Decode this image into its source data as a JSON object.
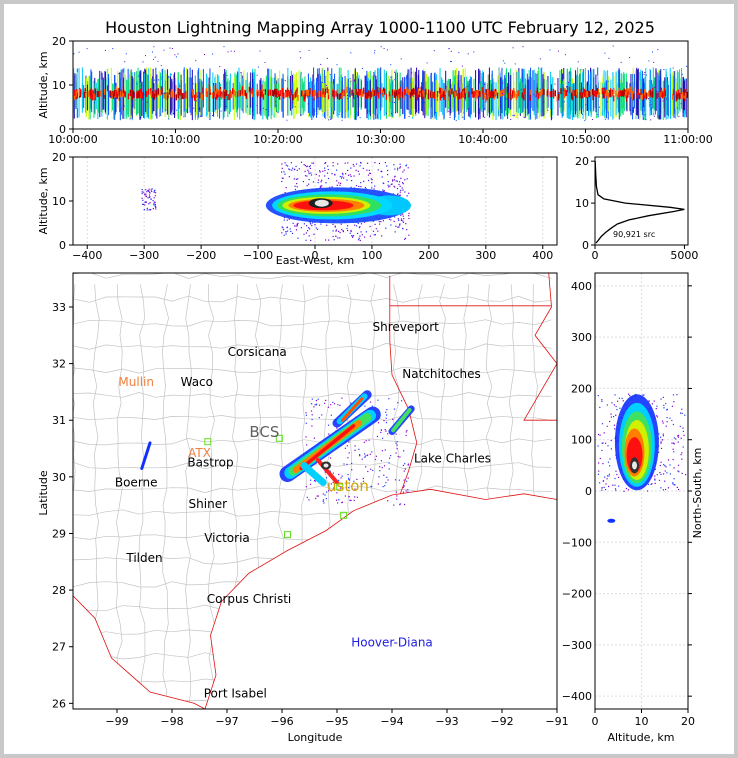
{
  "chart_data": {
    "type": "scatter",
    "title": "Houston Lightning Mapping Array 1000-1100 UTC February 12, 2025",
    "panels": {
      "time_height": {
        "ylabel": "Altitude, km",
        "ylim": [
          0,
          20
        ],
        "y_ticks": [
          "0",
          "10",
          "20"
        ],
        "x_ticks": [
          "10:00:00",
          "10:10:00",
          "10:20:00",
          "10:30:00",
          "10:40:00",
          "10:50:00",
          "11:00:00"
        ],
        "density_band_km": [
          2,
          14
        ],
        "peak_altitude_km": 8
      },
      "east_west_height": {
        "xlabel": "East-West, km",
        "ylabel": "Altitude, km",
        "xlim": [
          -425,
          425
        ],
        "ylim": [
          0,
          20
        ],
        "x_ticks": [
          "−400",
          "−300",
          "−200",
          "−100",
          "0",
          "100",
          "200",
          "300",
          "400"
        ],
        "y_ticks": [
          "0",
          "10",
          "20"
        ]
      },
      "altitude_histogram": {
        "x_ticks": [
          "0",
          "5000"
        ],
        "y_ticks": [
          "0",
          "10",
          "20"
        ],
        "xlim": [
          0,
          5200
        ],
        "ylim": [
          0,
          21
        ],
        "annotation": "90,921 src",
        "profile": [
          {
            "alt": 0.5,
            "count": 60
          },
          {
            "alt": 1,
            "count": 160
          },
          {
            "alt": 2,
            "count": 340
          },
          {
            "alt": 3,
            "count": 600
          },
          {
            "alt": 4,
            "count": 900
          },
          {
            "alt": 5,
            "count": 1250
          },
          {
            "alt": 6,
            "count": 1900
          },
          {
            "alt": 7,
            "count": 3000
          },
          {
            "alt": 8,
            "count": 4400
          },
          {
            "alt": 8.5,
            "count": 5000
          },
          {
            "alt": 9,
            "count": 4200
          },
          {
            "alt": 10,
            "count": 1700
          },
          {
            "alt": 11,
            "count": 500
          },
          {
            "alt": 12,
            "count": 170
          },
          {
            "alt": 14,
            "count": 80
          },
          {
            "alt": 17,
            "count": 40
          },
          {
            "alt": 20,
            "count": 10
          }
        ]
      },
      "plan_view": {
        "xlabel": "Longitude",
        "ylabel": "Latitude",
        "xlim": [
          -99.8,
          -91
        ],
        "ylim": [
          25.9,
          33.6
        ],
        "x_ticks": [
          "−99",
          "−98",
          "−97",
          "−96",
          "−95",
          "−94",
          "−93",
          "−92",
          "−91"
        ],
        "y_ticks": [
          "26",
          "27",
          "28",
          "29",
          "30",
          "31",
          "32",
          "33"
        ],
        "places": [
          {
            "name": "Shreveport",
            "lon": -93.75,
            "lat": 32.58,
            "color": "#000000"
          },
          {
            "name": "Corsicana",
            "lon": -96.45,
            "lat": 32.13,
            "color": "#000000"
          },
          {
            "name": "Natchitoches",
            "lon": -93.1,
            "lat": 31.75,
            "color": "#000000"
          },
          {
            "name": "Mullin",
            "lon": -98.65,
            "lat": 31.6,
            "color": "#f08040"
          },
          {
            "name": "Waco",
            "lon": -97.55,
            "lat": 31.6,
            "color": "#000000"
          },
          {
            "name": "BCS",
            "lon": -96.32,
            "lat": 30.7,
            "color": "#606060"
          },
          {
            "name": "ATX",
            "lon": -97.5,
            "lat": 30.35,
            "color": "#f08040"
          },
          {
            "name": "Bastrop",
            "lon": -97.3,
            "lat": 30.18,
            "color": "#000000"
          },
          {
            "name": "Lake Charles",
            "lon": -92.9,
            "lat": 30.25,
            "color": "#000000"
          },
          {
            "name": "Boerne",
            "lon": -98.65,
            "lat": 29.83,
            "color": "#000000"
          },
          {
            "name": "uston",
            "lon": -94.8,
            "lat": 29.75,
            "color": "#d0a000"
          },
          {
            "name": "Shiner",
            "lon": -97.35,
            "lat": 29.45,
            "color": "#000000"
          },
          {
            "name": "Victoria",
            "lon": -97.0,
            "lat": 28.85,
            "color": "#000000"
          },
          {
            "name": "Tilden",
            "lon": -98.5,
            "lat": 28.5,
            "color": "#000000"
          },
          {
            "name": "Corpus Christi",
            "lon": -96.6,
            "lat": 27.77,
            "color": "#000000"
          },
          {
            "name": "Hoover-Diana",
            "lon": -94.0,
            "lat": 27.0,
            "color": "#2020e0"
          },
          {
            "name": "Port Isabel",
            "lon": -96.85,
            "lat": 26.1,
            "color": "#000000"
          }
        ]
      },
      "north_south_height": {
        "xlabel": "Altitude, km",
        "ylabel": "North-South, km",
        "xlim": [
          0,
          20
        ],
        "ylim": [
          -425,
          425
        ],
        "x_ticks": [
          "0",
          "10",
          "20"
        ],
        "y_ticks": [
          "−400",
          "−300",
          "−200",
          "−100",
          "0",
          "100",
          "200",
          "300",
          "400"
        ]
      }
    }
  }
}
